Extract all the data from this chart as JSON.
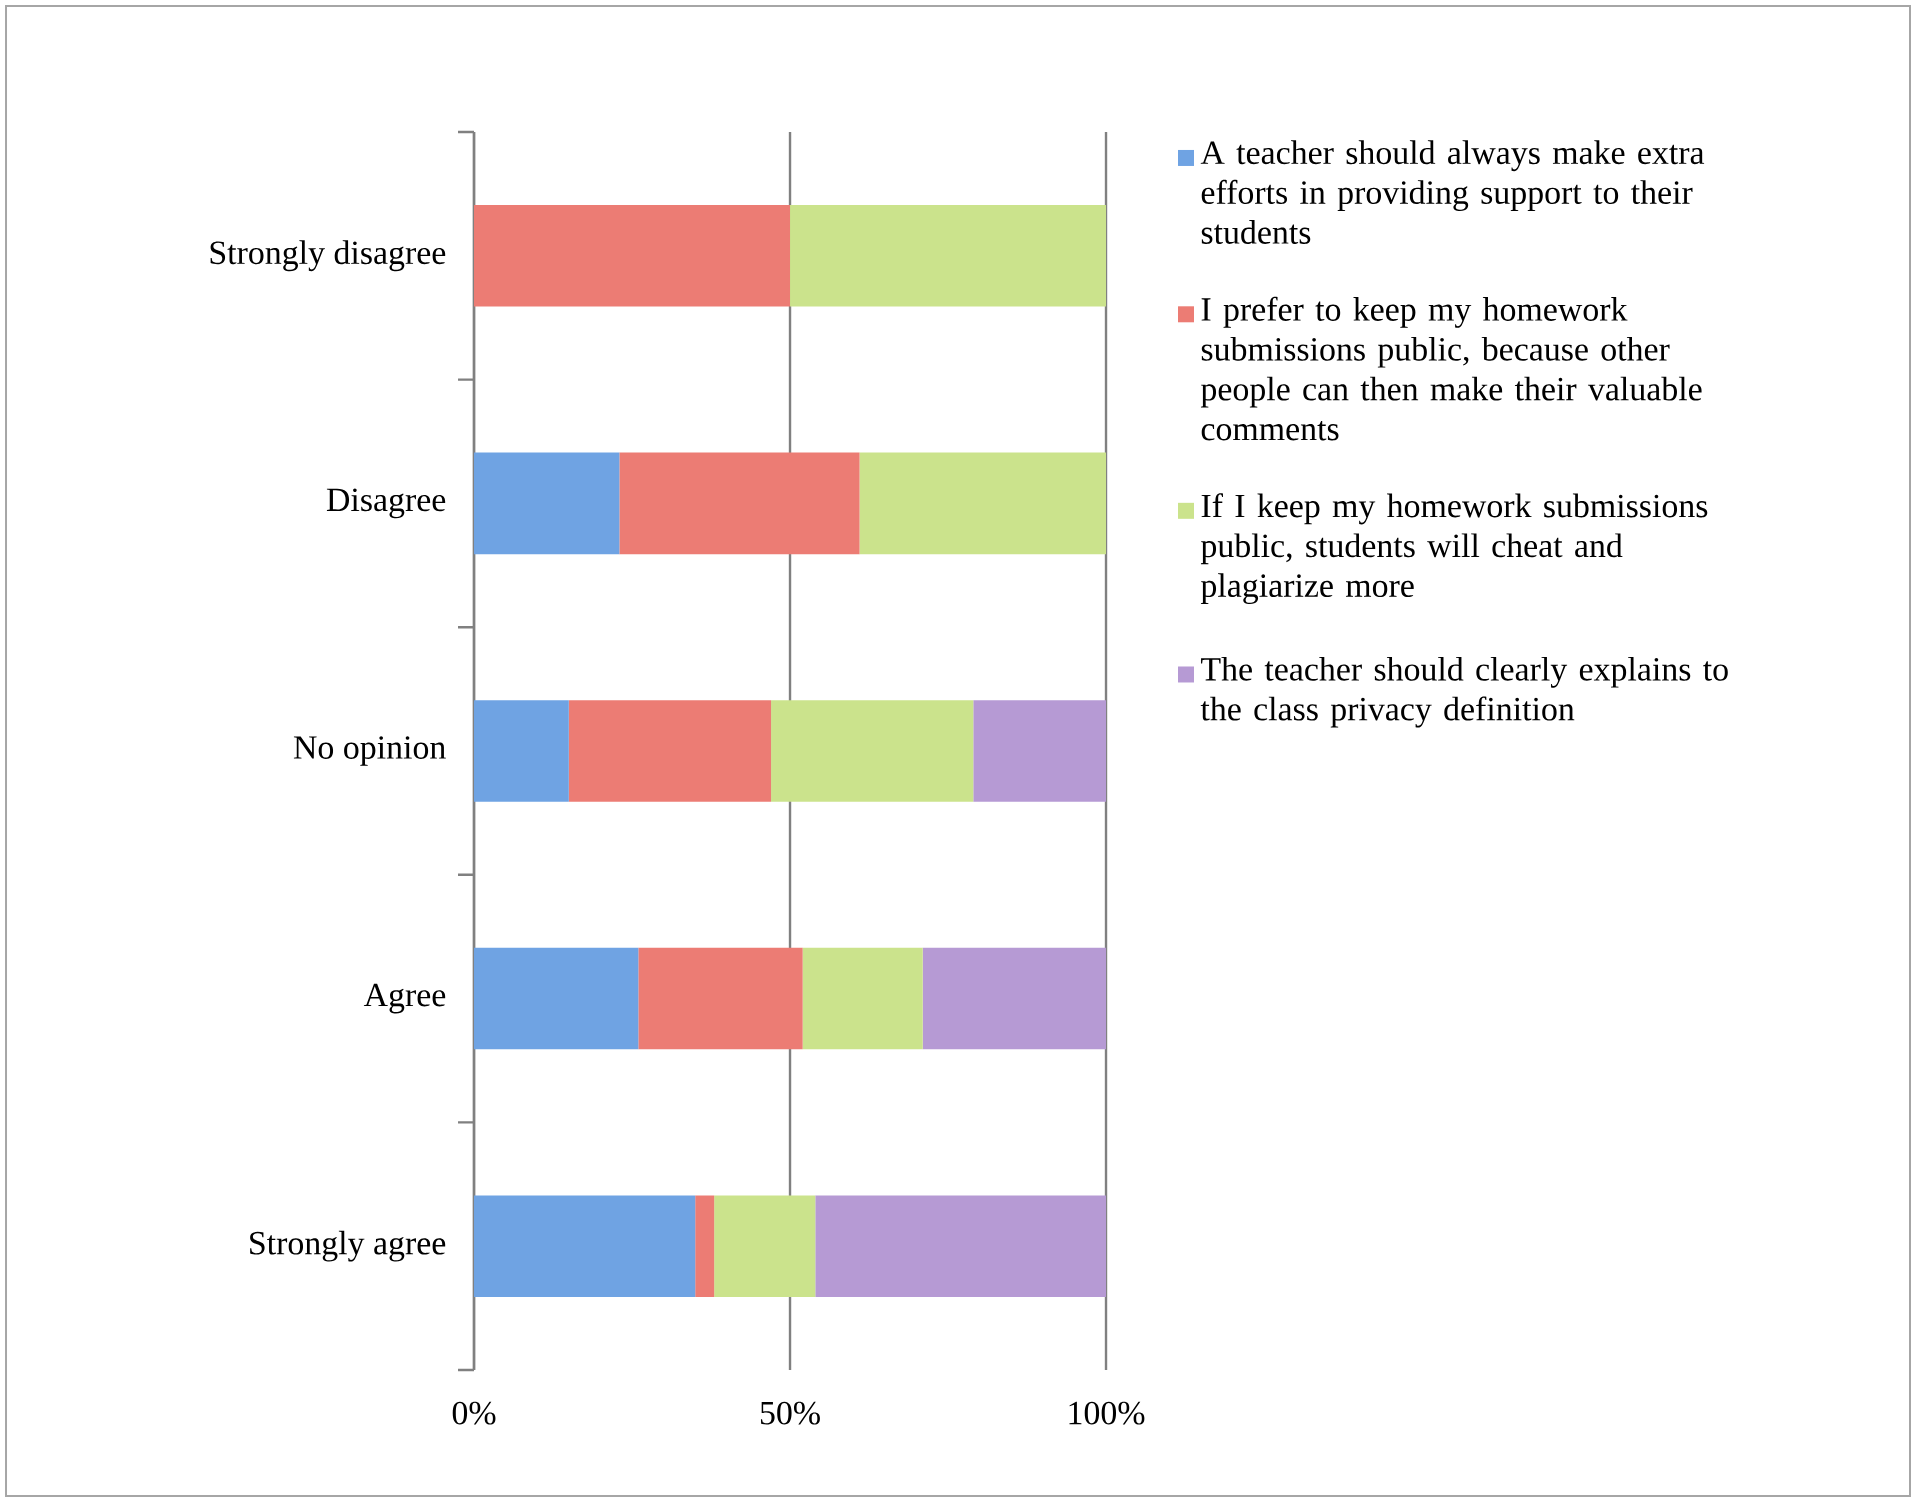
{
  "chart_data": {
    "type": "bar",
    "orientation": "horizontal",
    "stacked": true,
    "categories": [
      "Strongly disagree",
      "Disagree",
      "No opinion",
      "Agree",
      "Strongly agree"
    ],
    "series": [
      {
        "name": "A teacher should always make extra efforts in providing support to their students",
        "color": "#6fa3e3",
        "values": [
          0,
          23,
          15,
          26,
          35
        ]
      },
      {
        "name": "I prefer to keep my homework submissions public, because other people can then make their valuable comments",
        "color": "#ec7c74",
        "values": [
          50,
          38,
          32,
          26,
          3
        ]
      },
      {
        "name": "If I keep my homework submissions public, students will cheat and plagiarize more",
        "color": "#cbe38c",
        "values": [
          50,
          39,
          32,
          19,
          16
        ]
      },
      {
        "name": "The teacher should clearly explains to the class privacy definition",
        "color": "#b69ad4",
        "values": [
          0,
          0,
          21,
          29,
          46
        ]
      }
    ],
    "xlim": [
      0,
      100
    ],
    "xticks": [
      {
        "value": 0,
        "label": "0%"
      },
      {
        "value": 50,
        "label": "50%"
      },
      {
        "value": 100,
        "label": "100%"
      }
    ],
    "grid": "x",
    "legend": "right"
  }
}
